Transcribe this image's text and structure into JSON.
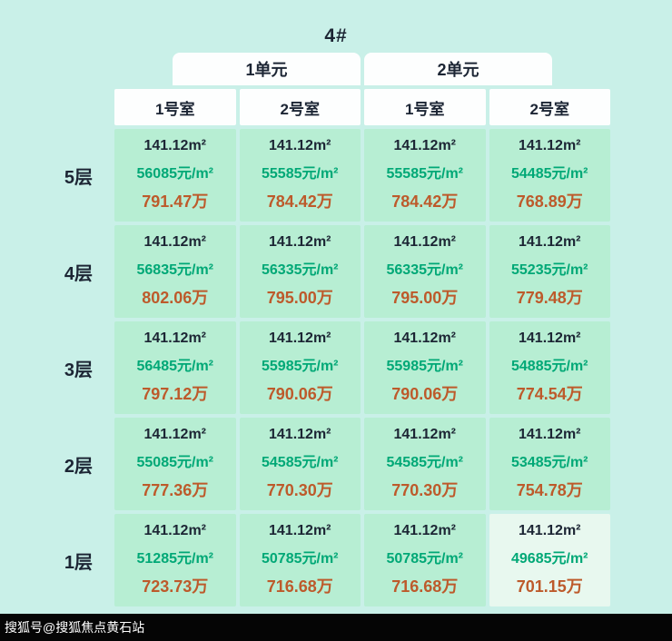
{
  "page": {
    "title": "4#"
  },
  "chart_data": {
    "type": "table",
    "title": "4#",
    "unit_headers": [
      "1单元",
      "2单元"
    ],
    "room_headers": [
      "1号室",
      "2号室",
      "1号室",
      "2号室"
    ],
    "floors": [
      {
        "label": "5层",
        "cells": [
          {
            "area": "141.12m²",
            "unit_price": "56085元/m²",
            "total": "791.47万"
          },
          {
            "area": "141.12m²",
            "unit_price": "55585元/m²",
            "total": "784.42万"
          },
          {
            "area": "141.12m²",
            "unit_price": "55585元/m²",
            "total": "784.42万"
          },
          {
            "area": "141.12m²",
            "unit_price": "54485元/m²",
            "total": "768.89万"
          }
        ]
      },
      {
        "label": "4层",
        "cells": [
          {
            "area": "141.12m²",
            "unit_price": "56835元/m²",
            "total": "802.06万"
          },
          {
            "area": "141.12m²",
            "unit_price": "56335元/m²",
            "total": "795.00万"
          },
          {
            "area": "141.12m²",
            "unit_price": "56335元/m²",
            "total": "795.00万"
          },
          {
            "area": "141.12m²",
            "unit_price": "55235元/m²",
            "total": "779.48万"
          }
        ]
      },
      {
        "label": "3层",
        "cells": [
          {
            "area": "141.12m²",
            "unit_price": "56485元/m²",
            "total": "797.12万"
          },
          {
            "area": "141.12m²",
            "unit_price": "55985元/m²",
            "total": "790.06万"
          },
          {
            "area": "141.12m²",
            "unit_price": "55985元/m²",
            "total": "790.06万"
          },
          {
            "area": "141.12m²",
            "unit_price": "54885元/m²",
            "total": "774.54万"
          }
        ]
      },
      {
        "label": "2层",
        "cells": [
          {
            "area": "141.12m²",
            "unit_price": "55085元/m²",
            "total": "777.36万"
          },
          {
            "area": "141.12m²",
            "unit_price": "54585元/m²",
            "total": "770.30万"
          },
          {
            "area": "141.12m²",
            "unit_price": "54585元/m²",
            "total": "770.30万"
          },
          {
            "area": "141.12m²",
            "unit_price": "53485元/m²",
            "total": "754.78万"
          }
        ]
      },
      {
        "label": "1层",
        "cells": [
          {
            "area": "141.12m²",
            "unit_price": "51285元/m²",
            "total": "723.73万"
          },
          {
            "area": "141.12m²",
            "unit_price": "50785元/m²",
            "total": "716.68万"
          },
          {
            "area": "141.12m²",
            "unit_price": "50785元/m²",
            "total": "716.68万"
          },
          {
            "area": "141.12m²",
            "unit_price": "49685元/m²",
            "total": "701.15万"
          }
        ]
      }
    ]
  },
  "footer": {
    "watermark": "搜狐号@搜狐焦点黄石站"
  },
  "colors": {
    "page_bg": "#c9f0e8",
    "cell_bg": "#b7eed3",
    "cell_highlight_bg": "#e8f8ef",
    "header_bg": "#fdfefe",
    "dark_text": "#1c2534",
    "green_text": "#00a876",
    "orange_text": "#bd5a2b",
    "footer_bg": "#050505",
    "footer_text": "#ffffff"
  }
}
